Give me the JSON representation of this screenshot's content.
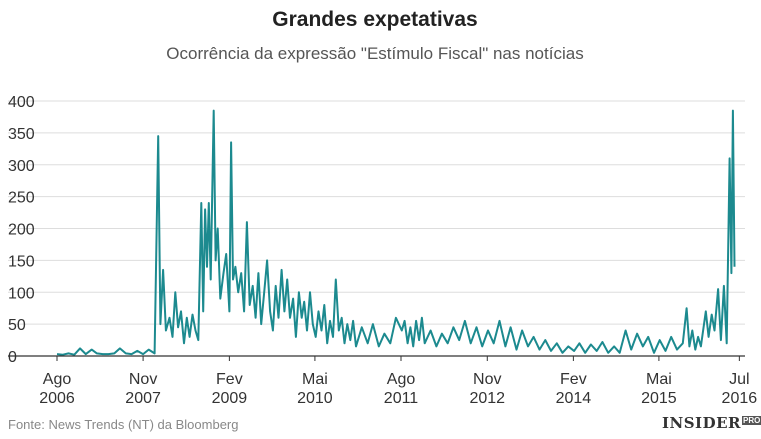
{
  "header": {
    "title": "Grandes expetativas",
    "subtitle": "Ocorrência da expressão \"Estímulo Fiscal\" nas notícias"
  },
  "footer": {
    "source": "Fonte: News Trends (NT) da Bloomberg",
    "brand": "INSIDER",
    "brand_suffix": "PRO"
  },
  "colors": {
    "line": "#1c8a8f",
    "grid": "#dddddd",
    "axis": "#333333"
  },
  "chart_data": {
    "type": "line",
    "title": "Grandes expetativas",
    "subtitle": "Ocorrência da expressão \"Estímulo Fiscal\" nas notícias",
    "x_range": [
      "2006-08-01",
      "2016-07-31"
    ],
    "ylim": [
      0,
      400
    ],
    "y_ticks": [
      0,
      50,
      100,
      150,
      200,
      250,
      300,
      350,
      400
    ],
    "grid": true,
    "x_ticks": [
      {
        "date": "2006-08-01",
        "label": [
          "Ago",
          "2006"
        ]
      },
      {
        "date": "2007-11-01",
        "label": [
          "Nov",
          "2007"
        ]
      },
      {
        "date": "2009-02-01",
        "label": [
          "Fev",
          "2009"
        ]
      },
      {
        "date": "2010-05-01",
        "label": [
          "Mai",
          "2010"
        ]
      },
      {
        "date": "2011-08-01",
        "label": [
          "Ago",
          "2011"
        ]
      },
      {
        "date": "2012-11-01",
        "label": [
          "Nov",
          "2012"
        ]
      },
      {
        "date": "2014-02-01",
        "label": [
          "Fev",
          "2014"
        ]
      },
      {
        "date": "2015-05-01",
        "label": [
          "Mai",
          "2015"
        ]
      },
      {
        "date": "2016-07-01",
        "label": [
          "Jul",
          "2016"
        ]
      }
    ],
    "series": [
      {
        "points": [
          [
            "2006-08-01",
            3
          ],
          [
            "2006-09-01",
            2
          ],
          [
            "2006-10-01",
            4
          ],
          [
            "2006-11-01",
            2
          ],
          [
            "2006-12-01",
            12
          ],
          [
            "2007-01-01",
            3
          ],
          [
            "2007-02-01",
            10
          ],
          [
            "2007-03-01",
            4
          ],
          [
            "2007-04-01",
            3
          ],
          [
            "2007-05-01",
            3
          ],
          [
            "2007-06-01",
            4
          ],
          [
            "2007-07-01",
            12
          ],
          [
            "2007-08-01",
            4
          ],
          [
            "2007-09-01",
            3
          ],
          [
            "2007-10-01",
            8
          ],
          [
            "2007-11-01",
            3
          ],
          [
            "2007-12-01",
            10
          ],
          [
            "2008-01-01",
            4
          ],
          [
            "2008-01-20",
            345
          ],
          [
            "2008-02-01",
            50
          ],
          [
            "2008-02-15",
            135
          ],
          [
            "2008-03-01",
            40
          ],
          [
            "2008-03-20",
            60
          ],
          [
            "2008-04-05",
            30
          ],
          [
            "2008-04-20",
            100
          ],
          [
            "2008-05-05",
            45
          ],
          [
            "2008-05-20",
            70
          ],
          [
            "2008-06-05",
            20
          ],
          [
            "2008-06-20",
            60
          ],
          [
            "2008-07-05",
            30
          ],
          [
            "2008-07-20",
            65
          ],
          [
            "2008-08-05",
            40
          ],
          [
            "2008-08-20",
            25
          ],
          [
            "2008-09-05",
            240
          ],
          [
            "2008-09-15",
            70
          ],
          [
            "2008-09-25",
            230
          ],
          [
            "2008-10-05",
            140
          ],
          [
            "2008-10-15",
            240
          ],
          [
            "2008-10-25",
            120
          ],
          [
            "2008-11-10",
            385
          ],
          [
            "2008-11-20",
            150
          ],
          [
            "2008-12-01",
            200
          ],
          [
            "2008-12-15",
            90
          ],
          [
            "2009-01-01",
            130
          ],
          [
            "2009-01-15",
            160
          ],
          [
            "2009-02-01",
            70
          ],
          [
            "2009-02-10",
            335
          ],
          [
            "2009-02-20",
            120
          ],
          [
            "2009-03-05",
            140
          ],
          [
            "2009-03-20",
            100
          ],
          [
            "2009-04-05",
            130
          ],
          [
            "2009-04-20",
            70
          ],
          [
            "2009-05-05",
            210
          ],
          [
            "2009-05-20",
            80
          ],
          [
            "2009-06-05",
            110
          ],
          [
            "2009-06-20",
            60
          ],
          [
            "2009-07-05",
            130
          ],
          [
            "2009-07-20",
            50
          ],
          [
            "2009-08-05",
            100
          ],
          [
            "2009-08-20",
            150
          ],
          [
            "2009-09-05",
            70
          ],
          [
            "2009-09-20",
            40
          ],
          [
            "2009-10-05",
            110
          ],
          [
            "2009-10-20",
            60
          ],
          [
            "2009-11-05",
            135
          ],
          [
            "2009-11-20",
            70
          ],
          [
            "2009-12-05",
            120
          ],
          [
            "2009-12-20",
            60
          ],
          [
            "2010-01-05",
            90
          ],
          [
            "2010-01-20",
            30
          ],
          [
            "2010-02-05",
            100
          ],
          [
            "2010-02-20",
            60
          ],
          [
            "2010-03-05",
            85
          ],
          [
            "2010-03-20",
            40
          ],
          [
            "2010-04-05",
            100
          ],
          [
            "2010-04-20",
            50
          ],
          [
            "2010-05-05",
            30
          ],
          [
            "2010-05-20",
            70
          ],
          [
            "2010-06-05",
            40
          ],
          [
            "2010-06-20",
            80
          ],
          [
            "2010-07-05",
            20
          ],
          [
            "2010-07-20",
            55
          ],
          [
            "2010-08-05",
            30
          ],
          [
            "2010-08-20",
            120
          ],
          [
            "2010-09-05",
            40
          ],
          [
            "2010-09-20",
            60
          ],
          [
            "2010-10-05",
            20
          ],
          [
            "2010-10-20",
            50
          ],
          [
            "2010-11-05",
            25
          ],
          [
            "2010-11-20",
            55
          ],
          [
            "2010-12-05",
            15
          ],
          [
            "2011-01-05",
            45
          ],
          [
            "2011-02-05",
            20
          ],
          [
            "2011-03-05",
            50
          ],
          [
            "2011-04-05",
            15
          ],
          [
            "2011-05-05",
            35
          ],
          [
            "2011-06-05",
            20
          ],
          [
            "2011-07-05",
            60
          ],
          [
            "2011-08-05",
            40
          ],
          [
            "2011-08-20",
            55
          ],
          [
            "2011-09-05",
            20
          ],
          [
            "2011-09-20",
            45
          ],
          [
            "2011-10-05",
            15
          ],
          [
            "2011-10-20",
            55
          ],
          [
            "2011-11-05",
            25
          ],
          [
            "2011-11-20",
            60
          ],
          [
            "2011-12-05",
            20
          ],
          [
            "2012-01-05",
            40
          ],
          [
            "2012-02-05",
            15
          ],
          [
            "2012-03-05",
            35
          ],
          [
            "2012-04-05",
            20
          ],
          [
            "2012-05-05",
            45
          ],
          [
            "2012-06-05",
            25
          ],
          [
            "2012-07-05",
            55
          ],
          [
            "2012-08-05",
            20
          ],
          [
            "2012-09-05",
            45
          ],
          [
            "2012-10-05",
            15
          ],
          [
            "2012-11-05",
            40
          ],
          [
            "2012-12-05",
            20
          ],
          [
            "2013-01-05",
            55
          ],
          [
            "2013-02-05",
            15
          ],
          [
            "2013-03-05",
            45
          ],
          [
            "2013-04-05",
            10
          ],
          [
            "2013-05-05",
            40
          ],
          [
            "2013-06-05",
            15
          ],
          [
            "2013-07-05",
            30
          ],
          [
            "2013-08-05",
            10
          ],
          [
            "2013-09-05",
            25
          ],
          [
            "2013-10-05",
            8
          ],
          [
            "2013-11-05",
            20
          ],
          [
            "2013-12-05",
            5
          ],
          [
            "2014-01-05",
            15
          ],
          [
            "2014-02-05",
            8
          ],
          [
            "2014-03-05",
            20
          ],
          [
            "2014-04-05",
            5
          ],
          [
            "2014-05-05",
            18
          ],
          [
            "2014-06-05",
            8
          ],
          [
            "2014-07-05",
            22
          ],
          [
            "2014-08-05",
            5
          ],
          [
            "2014-09-05",
            15
          ],
          [
            "2014-10-05",
            5
          ],
          [
            "2014-11-05",
            40
          ],
          [
            "2014-12-05",
            10
          ],
          [
            "2015-01-05",
            35
          ],
          [
            "2015-02-05",
            15
          ],
          [
            "2015-03-05",
            30
          ],
          [
            "2015-04-05",
            5
          ],
          [
            "2015-05-05",
            25
          ],
          [
            "2015-06-05",
            8
          ],
          [
            "2015-07-05",
            30
          ],
          [
            "2015-08-05",
            10
          ],
          [
            "2015-09-05",
            20
          ],
          [
            "2015-09-25",
            75
          ],
          [
            "2015-10-10",
            15
          ],
          [
            "2015-10-25",
            40
          ],
          [
            "2015-11-10",
            10
          ],
          [
            "2015-11-25",
            30
          ],
          [
            "2015-12-10",
            15
          ],
          [
            "2016-01-05",
            70
          ],
          [
            "2016-01-20",
            30
          ],
          [
            "2016-02-05",
            65
          ],
          [
            "2016-02-20",
            40
          ],
          [
            "2016-03-10",
            105
          ],
          [
            "2016-03-25",
            25
          ],
          [
            "2016-04-10",
            110
          ],
          [
            "2016-04-25",
            20
          ],
          [
            "2016-05-10",
            310
          ],
          [
            "2016-05-20",
            130
          ],
          [
            "2016-05-28",
            385
          ],
          [
            "2016-06-05",
            140
          ]
        ]
      }
    ]
  }
}
